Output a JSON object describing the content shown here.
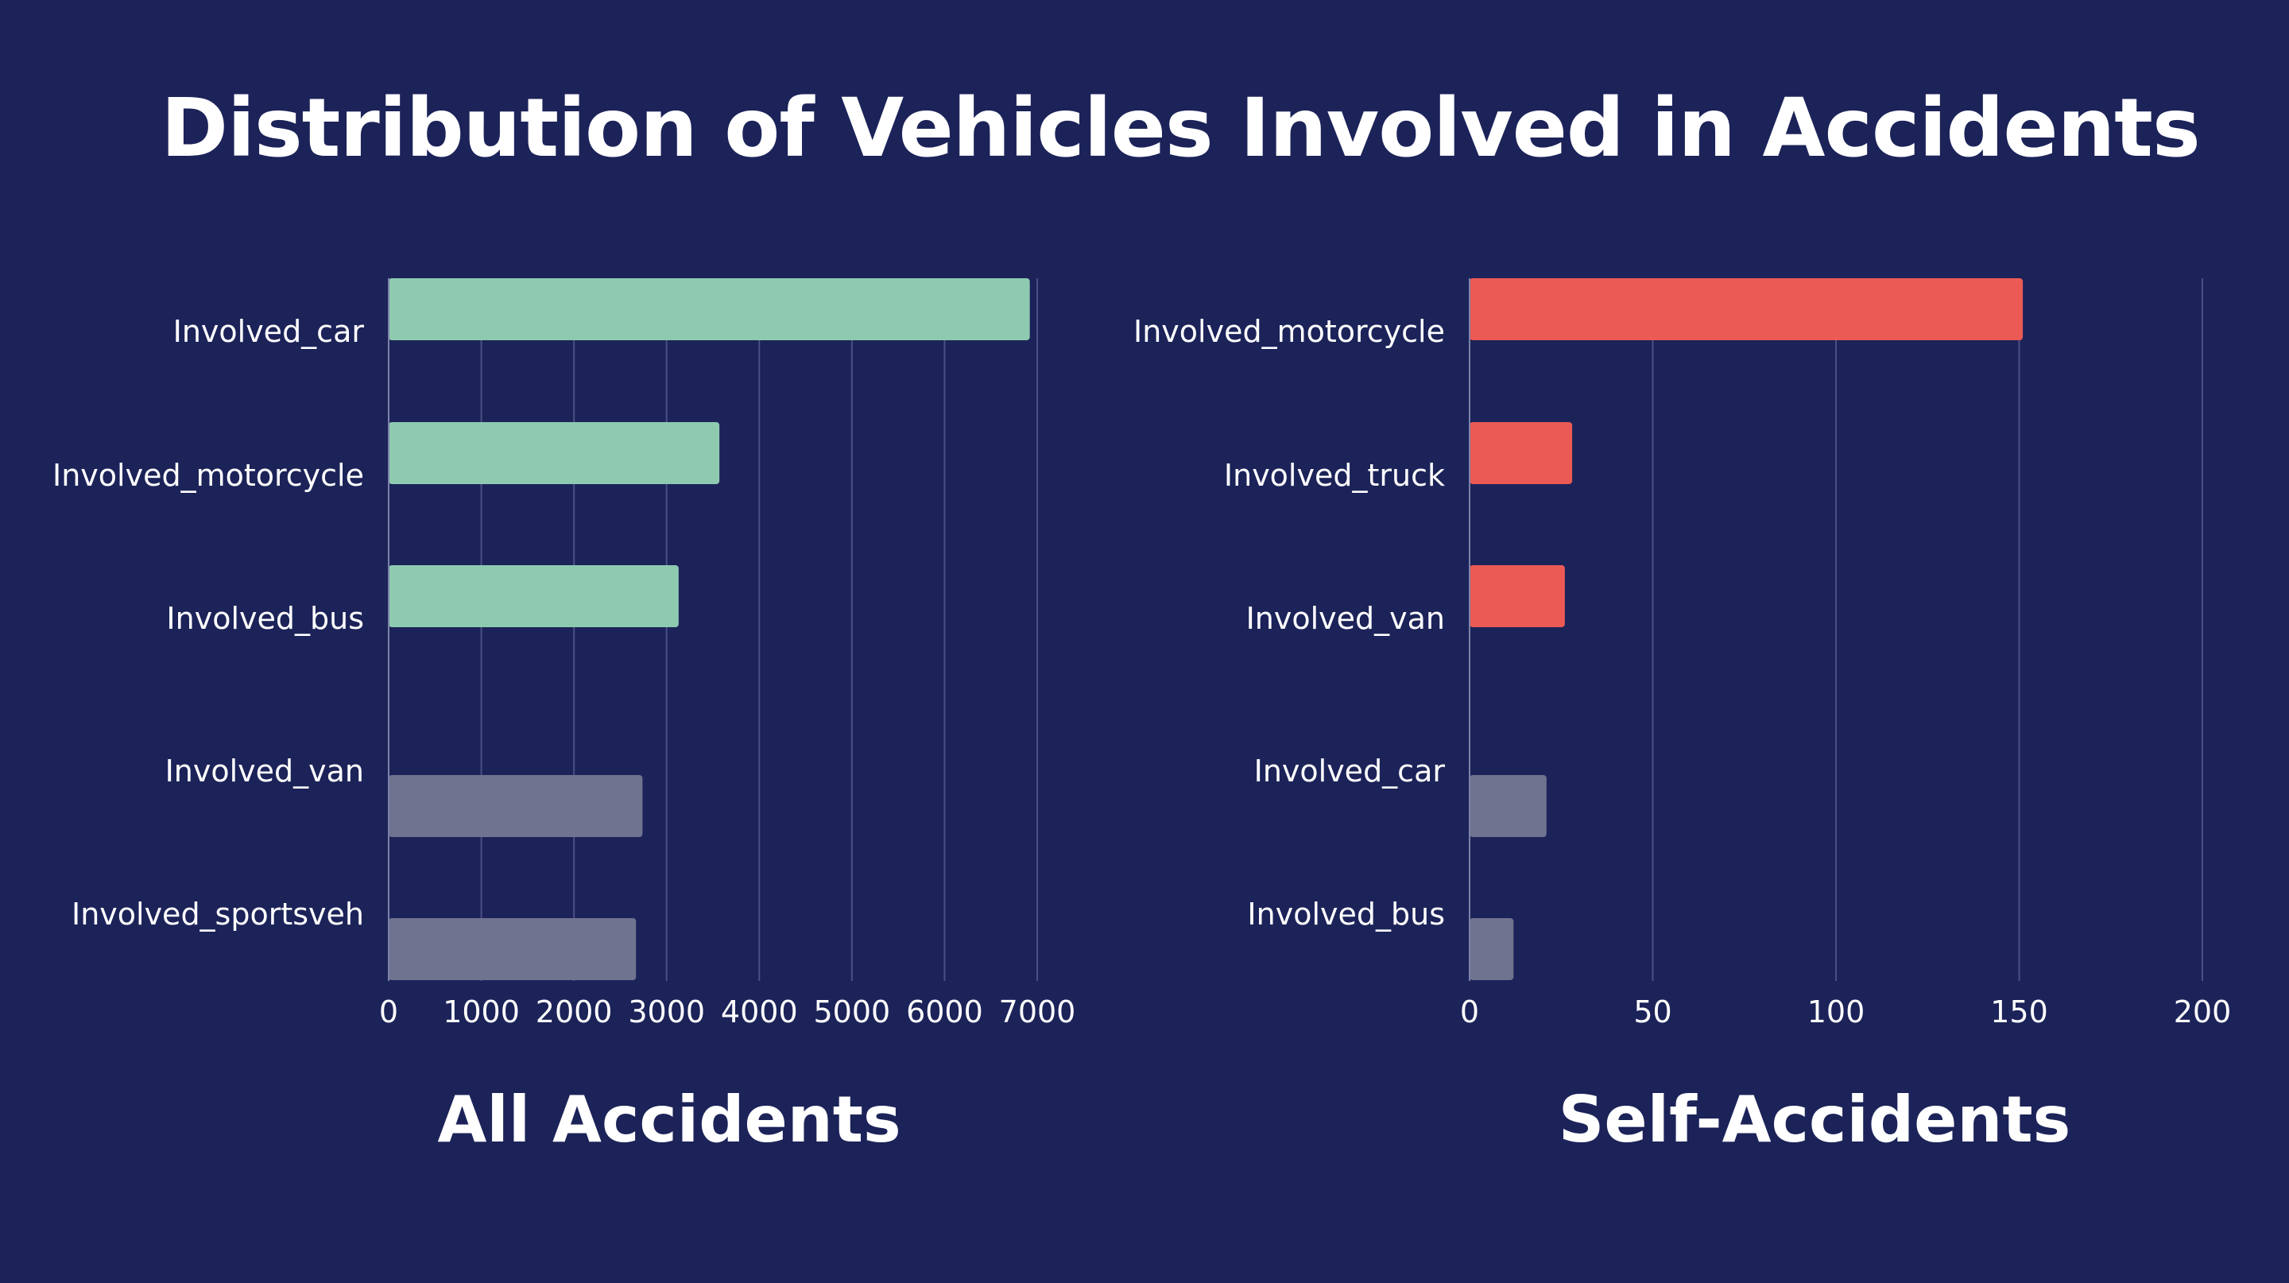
{
  "title": "Distribution of Vehicles Involved in Accidents",
  "colors": {
    "background": "#1c2359",
    "highlight_all": "#8ecab0",
    "highlight_self": "#eb5a55",
    "muted": "#70738f",
    "grid": "#4a5083",
    "text": "#ffffff"
  },
  "chart_data": [
    {
      "type": "bar",
      "orientation": "horizontal",
      "subtitle": "All Accidents",
      "categories": [
        "Involved_car",
        "Involved_motorcycle",
        "Involved_bus",
        "Involved_van",
        "Involved_sportsveh"
      ],
      "values": [
        6920,
        3570,
        3130,
        2740,
        2670
      ],
      "highlighted": [
        true,
        true,
        true,
        false,
        false
      ],
      "xlim": [
        0,
        7000
      ],
      "xticks": [
        "0",
        "1000",
        "2000",
        "3000",
        "4000",
        "5000",
        "6000",
        "7000"
      ],
      "xlabel": "",
      "ylabel": "",
      "grid": "vertical"
    },
    {
      "type": "bar",
      "orientation": "horizontal",
      "subtitle": "Self-Accidents",
      "categories": [
        "Involved_motorcycle",
        "Involved_truck",
        "Involved_van",
        "Involved_car",
        "Involved_bus"
      ],
      "values": [
        151,
        28,
        26,
        21,
        12
      ],
      "highlighted": [
        true,
        true,
        true,
        false,
        false
      ],
      "xlim": [
        0,
        200
      ],
      "xticks": [
        "0",
        "50",
        "100",
        "150",
        "200"
      ],
      "xlabel": "",
      "ylabel": "",
      "grid": "vertical"
    }
  ]
}
